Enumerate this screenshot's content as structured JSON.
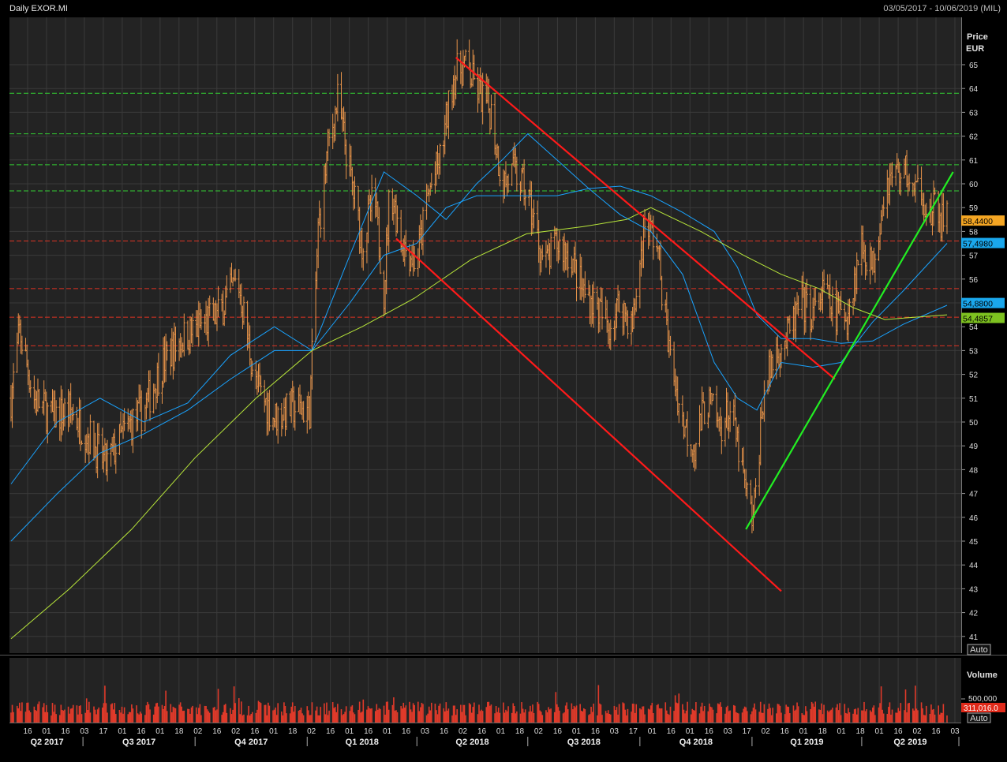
{
  "header": {
    "title": "Daily EXOR.MI",
    "date_range": "03/05/2017 - 10/06/2019 (MIL)"
  },
  "price_panel": {
    "axis_label_line1": "Price",
    "axis_label_line2": "EUR",
    "auto_button": "Auto"
  },
  "volume_panel": {
    "axis_label": "Volume",
    "tick_label": "500,000",
    "last_volume": "311,016.0",
    "auto_button": "Auto"
  },
  "x_labels": {
    "day_ticks": [
      "16",
      "01",
      "16",
      "03",
      "17",
      "01",
      "16",
      "01",
      "18",
      "02",
      "16",
      "02",
      "16",
      "01",
      "18",
      "02",
      "16",
      "01",
      "16",
      "01",
      "16",
      "03",
      "16",
      "02",
      "16",
      "01",
      "18",
      "02",
      "16",
      "01",
      "16",
      "03",
      "17",
      "01",
      "16",
      "01",
      "16",
      "03",
      "17",
      "02",
      "16",
      "01",
      "18",
      "01",
      "18",
      "01",
      "16",
      "02",
      "16",
      "03"
    ],
    "quarters": [
      "Q2 2017",
      "Q3 2017",
      "Q4 2017",
      "Q1 2018",
      "Q2 2018",
      "Q3 2018",
      "Q4 2018",
      "Q1 2019",
      "Q2 2019"
    ]
  },
  "colors": {
    "background": "#000000",
    "plot_background": "#232323",
    "grid": "#3a3a3a",
    "price_bars": "#e8944a",
    "ma_short": "#19a3ff",
    "ma_long": "#b8e63a",
    "channel": "#ff1a1a",
    "uptrend": "#22ee22",
    "resistance": "#33cc33",
    "support": "#dd3322",
    "volume": "#e03a2a",
    "badge_last": "#f5a623",
    "badge_ma_short": "#1aa7ec",
    "badge_ma_long": "#7ec220"
  },
  "chart_data": {
    "type": "ohlc",
    "title": "Daily EXOR.MI",
    "ylabel": "Price EUR",
    "ylim": [
      40.5,
      66
    ],
    "y_ticks": [
      41,
      42,
      43,
      44,
      45,
      46,
      47,
      48,
      49,
      50,
      51,
      52,
      53,
      54,
      55,
      56,
      57,
      58,
      59,
      60,
      61,
      62,
      63,
      64,
      65
    ],
    "grid": true,
    "price_path": {
      "dates": [
        "2017-05-03",
        "2017-05-10",
        "2017-05-22",
        "2017-06-05",
        "2017-06-20",
        "2017-07-05",
        "2017-07-20",
        "2017-08-05",
        "2017-08-20",
        "2017-09-05",
        "2017-09-20",
        "2017-10-05",
        "2017-10-20",
        "2017-11-05",
        "2017-11-20",
        "2017-12-05",
        "2017-12-20",
        "2018-01-03",
        "2018-01-10",
        "2018-01-18",
        "2018-01-26",
        "2018-02-05",
        "2018-02-15",
        "2018-02-25",
        "2018-03-05",
        "2018-03-10",
        "2018-03-20",
        "2018-04-01",
        "2018-04-10",
        "2018-04-20",
        "2018-05-01",
        "2018-05-10",
        "2018-05-20",
        "2018-06-01",
        "2018-06-10",
        "2018-06-20",
        "2018-07-01",
        "2018-07-15",
        "2018-07-25",
        "2018-08-05",
        "2018-08-15",
        "2018-08-25",
        "2018-09-05",
        "2018-09-15",
        "2018-09-25",
        "2018-10-05",
        "2018-10-15",
        "2018-10-25",
        "2018-11-05",
        "2018-11-15",
        "2018-11-25",
        "2018-12-05",
        "2018-12-15",
        "2018-12-27",
        "2019-01-02",
        "2019-01-10",
        "2019-01-20",
        "2019-01-30",
        "2019-02-10",
        "2019-02-20",
        "2019-03-01",
        "2019-03-10",
        "2019-03-20",
        "2019-04-01",
        "2019-04-10",
        "2019-04-20",
        "2019-04-30",
        "2019-05-08",
        "2019-05-14",
        "2019-05-20",
        "2019-05-26",
        "2019-06-01",
        "2019-06-05",
        "2019-06-10"
      ],
      "close": [
        51,
        53.8,
        51,
        50.2,
        50.5,
        49.5,
        48.2,
        49.7,
        50.5,
        52.5,
        53.5,
        54,
        54.5,
        56,
        51.5,
        50.2,
        50.6,
        50.5,
        58,
        61.5,
        63.5,
        60.5,
        57.5,
        59.5,
        55.5,
        60,
        57.5,
        56.7,
        59.5,
        61,
        64.5,
        65,
        64,
        63,
        60,
        60.5,
        59.5,
        56.5,
        57.5,
        57,
        55.5,
        55,
        54,
        55,
        54,
        58.5,
        57.5,
        53,
        50,
        49,
        51,
        49.8,
        50.5,
        47,
        45.8,
        51,
        53,
        53.5,
        55,
        54.5,
        55.5,
        54.5,
        54.5,
        57.5,
        56.5,
        60,
        60.5,
        60.5,
        59.5,
        60,
        58.44,
        59,
        58.5,
        58.44
      ]
    },
    "moving_averages": [
      {
        "dates": [
          "2017-05-03",
          "2017-06-10",
          "2017-07-15",
          "2017-08-20",
          "2017-09-25",
          "2017-10-30",
          "2017-12-05",
          "2018-01-05",
          "2018-02-05",
          "2018-03-05",
          "2018-04-01",
          "2018-04-25",
          "2018-05-20",
          "2018-06-10",
          "2018-07-01",
          "2018-07-25",
          "2018-08-20",
          "2018-09-15",
          "2018-10-10",
          "2018-11-05",
          "2018-12-01",
          "2018-12-20",
          "2019-01-05",
          "2019-01-25",
          "2019-02-20",
          "2019-03-15",
          "2019-04-10",
          "2019-05-05",
          "2019-06-10"
        ],
        "values": [
          47.4,
          50,
          51,
          50,
          50.8,
          52.8,
          54,
          53,
          57,
          60.5,
          59.5,
          58.5,
          60,
          61,
          62.1,
          61,
          59.8,
          58.7,
          58,
          56.2,
          52.5,
          51,
          50.5,
          52.5,
          52.3,
          52.5,
          54.2,
          55.5,
          57.5
        ]
      },
      {
        "dates": [
          "2017-05-03",
          "2017-06-10",
          "2017-07-15",
          "2017-08-20",
          "2017-09-25",
          "2017-10-30",
          "2017-12-05",
          "2018-01-05",
          "2018-02-05",
          "2018-03-05",
          "2018-04-01",
          "2018-04-25",
          "2018-05-20",
          "2018-06-10",
          "2018-07-01",
          "2018-07-25",
          "2018-08-20",
          "2018-09-15",
          "2018-10-10",
          "2018-11-05",
          "2018-12-01",
          "2018-12-20",
          "2019-01-05",
          "2019-01-25",
          "2019-02-20",
          "2019-03-15",
          "2019-04-10",
          "2019-05-05",
          "2019-06-10"
        ],
        "values": [
          45,
          47,
          48.7,
          49.5,
          50.5,
          51.8,
          53,
          53,
          55,
          57,
          57.5,
          59,
          59.5,
          59.5,
          59.5,
          59.5,
          59.8,
          59.9,
          59.5,
          58.8,
          58,
          56.5,
          54.5,
          53.5,
          53.5,
          53.3,
          53.4,
          54.1,
          54.9
        ]
      },
      {
        "dates": [
          "2017-05-03",
          "2017-06-20",
          "2017-08-10",
          "2017-10-01",
          "2017-11-20",
          "2018-01-05",
          "2018-02-15",
          "2018-03-30",
          "2018-05-15",
          "2018-06-30",
          "2018-08-15",
          "2018-09-20",
          "2018-10-10",
          "2018-11-20",
          "2018-12-25",
          "2019-01-25",
          "2019-02-25",
          "2019-03-25",
          "2019-04-20",
          "2019-05-15",
          "2019-06-10"
        ],
        "values": [
          40.9,
          43,
          45.5,
          48.5,
          51,
          53,
          54,
          55.2,
          56.8,
          57.9,
          58.2,
          58.5,
          59,
          58,
          57,
          56.2,
          55.6,
          54.8,
          54.3,
          54.4,
          54.5
        ]
      }
    ],
    "trendlines": [
      {
        "name": "channel-top",
        "from": [
          "2018-05-03",
          65.3
        ],
        "to": [
          "2019-03-10",
          51.8
        ]
      },
      {
        "name": "channel-bottom",
        "from": [
          "2018-03-15",
          57.7
        ],
        "to": [
          "2019-01-25",
          42.9
        ]
      },
      {
        "name": "uptrend",
        "from": [
          "2018-12-27",
          45.5
        ],
        "to": [
          "2019-06-15",
          60.5
        ]
      }
    ],
    "horizontal_levels": {
      "resistance": [
        63.8,
        62.1,
        60.8,
        59.7
      ],
      "support": [
        57.6,
        55.6,
        54.4,
        53.2
      ]
    },
    "last_values": {
      "close": "58,4400",
      "ma_short": "57,4980",
      "ma_mid": "54,8800",
      "ma_long": "54,4857"
    },
    "volume": {
      "typical": 330000,
      "last": 311016
    }
  }
}
